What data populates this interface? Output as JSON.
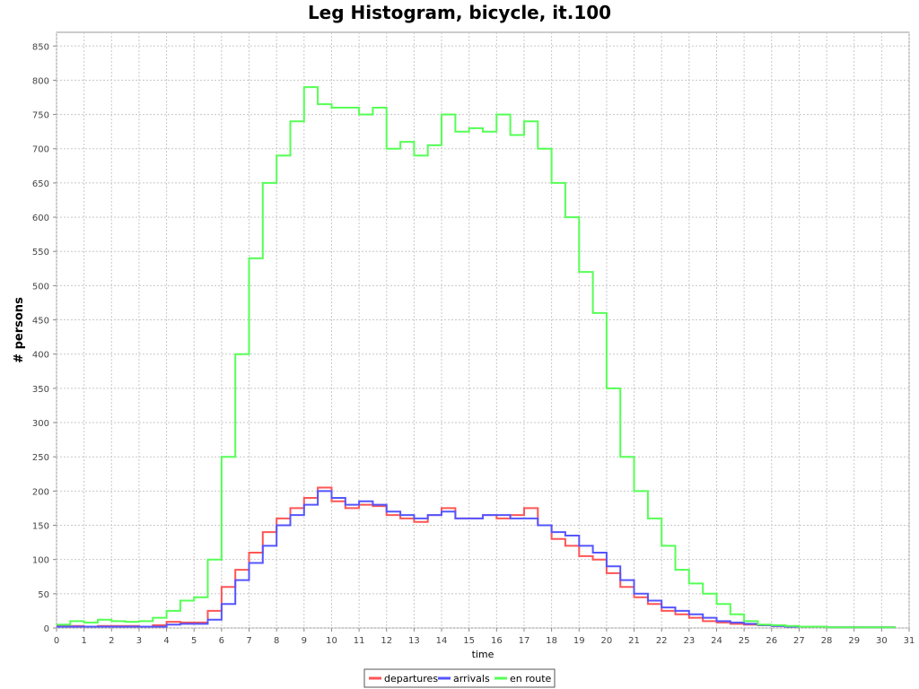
{
  "chart_data": {
    "type": "line",
    "title": "Leg Histogram, bicycle, it.100",
    "xlabel": "time",
    "ylabel": "# persons",
    "xlim": [
      0,
      31
    ],
    "ylim": [
      0,
      870
    ],
    "xticks": [
      0,
      1,
      2,
      3,
      4,
      5,
      6,
      7,
      8,
      9,
      10,
      11,
      12,
      13,
      14,
      15,
      16,
      17,
      18,
      19,
      20,
      21,
      22,
      23,
      24,
      25,
      26,
      27,
      28,
      29,
      30,
      31
    ],
    "yticks": [
      0,
      50,
      100,
      150,
      200,
      250,
      300,
      350,
      400,
      450,
      500,
      550,
      600,
      650,
      700,
      750,
      800,
      850
    ],
    "grid": true,
    "legend_position": "bottom",
    "step": true,
    "x": [
      0,
      0.5,
      1,
      1.5,
      2,
      2.5,
      3,
      3.5,
      4,
      4.5,
      5,
      5.5,
      6,
      6.5,
      7,
      7.5,
      8,
      8.5,
      9,
      9.5,
      10,
      10.5,
      11,
      11.5,
      12,
      12.5,
      13,
      13.5,
      14,
      14.5,
      15,
      15.5,
      16,
      16.5,
      17,
      17.5,
      18,
      18.5,
      19,
      19.5,
      20,
      20.5,
      21,
      21.5,
      22,
      22.5,
      23,
      23.5,
      24,
      24.5,
      25,
      25.5,
      26,
      26.5,
      27,
      27.5,
      28,
      28.5,
      29,
      29.5,
      30
    ],
    "series": [
      {
        "name": "departures",
        "color": "#ff5555",
        "values": [
          3,
          3,
          2,
          3,
          3,
          3,
          2,
          4,
          9,
          8,
          8,
          25,
          60,
          85,
          110,
          140,
          160,
          175,
          190,
          205,
          185,
          175,
          180,
          178,
          165,
          160,
          155,
          165,
          175,
          160,
          160,
          165,
          160,
          165,
          175,
          150,
          130,
          120,
          105,
          100,
          80,
          60,
          45,
          35,
          25,
          20,
          15,
          10,
          8,
          6,
          5,
          4,
          3,
          2,
          2,
          2,
          1,
          1,
          1,
          1,
          1
        ]
      },
      {
        "name": "arrivals",
        "color": "#5555ff",
        "values": [
          2,
          2,
          2,
          2,
          2,
          2,
          2,
          2,
          5,
          6,
          6,
          12,
          35,
          70,
          95,
          120,
          150,
          165,
          180,
          200,
          190,
          180,
          185,
          180,
          170,
          165,
          160,
          165,
          170,
          160,
          160,
          165,
          165,
          160,
          160,
          150,
          140,
          135,
          120,
          110,
          90,
          70,
          50,
          40,
          30,
          25,
          20,
          15,
          10,
          8,
          6,
          4,
          3,
          2,
          2,
          2,
          1,
          1,
          1,
          1,
          1
        ]
      },
      {
        "name": "en route",
        "color": "#55ff55",
        "values": [
          5,
          10,
          8,
          12,
          10,
          9,
          10,
          15,
          25,
          40,
          45,
          100,
          250,
          400,
          540,
          650,
          690,
          740,
          790,
          765,
          760,
          760,
          750,
          760,
          700,
          710,
          690,
          705,
          750,
          725,
          730,
          725,
          750,
          720,
          740,
          700,
          650,
          600,
          520,
          460,
          350,
          250,
          200,
          160,
          120,
          85,
          65,
          50,
          35,
          20,
          10,
          5,
          4,
          3,
          2,
          2,
          1,
          1,
          1,
          1,
          1
        ]
      }
    ]
  }
}
